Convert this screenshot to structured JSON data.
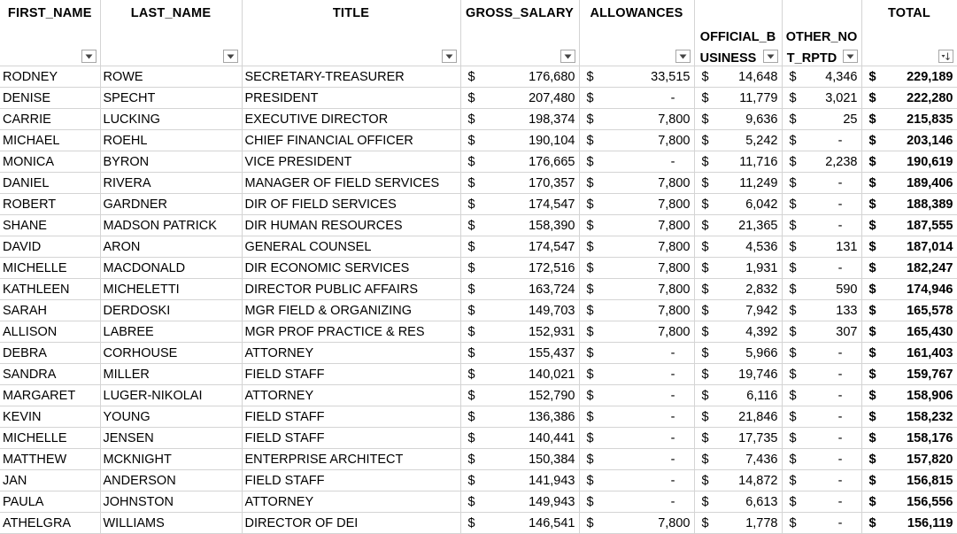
{
  "headers": {
    "first_name": "FIRST_NAME",
    "last_name": "LAST_NAME",
    "title": "TITLE",
    "gross_salary": "GROSS_SALARY",
    "allowances": "ALLOWANCES",
    "official_business_line1": "OFFICIAL_B",
    "official_business_line2": "USINESS",
    "other_not_rptd_line1": "OTHER_NO",
    "other_not_rptd_line2": "T_RPTD",
    "total": "TOTAL"
  },
  "currency_symbol": "$",
  "rows": [
    {
      "first": "RODNEY",
      "last": "ROWE",
      "title": "SECRETARY-TREASURER",
      "gross": "176,680",
      "allow": "33,515",
      "official": "14,648",
      "other": "4,346",
      "total": "229,189"
    },
    {
      "first": "DENISE",
      "last": "SPECHT",
      "title": "PRESIDENT",
      "gross": "207,480",
      "allow": "-",
      "official": "11,779",
      "other": "3,021",
      "total": "222,280"
    },
    {
      "first": "CARRIE",
      "last": "LUCKING",
      "title": "EXECUTIVE DIRECTOR",
      "gross": "198,374",
      "allow": "7,800",
      "official": "9,636",
      "other": "25",
      "total": "215,835"
    },
    {
      "first": "MICHAEL",
      "last": "ROEHL",
      "title": "CHIEF FINANCIAL OFFICER",
      "gross": "190,104",
      "allow": "7,800",
      "official": "5,242",
      "other": "-",
      "total": "203,146"
    },
    {
      "first": "MONICA",
      "last": "BYRON",
      "title": "VICE PRESIDENT",
      "gross": "176,665",
      "allow": "-",
      "official": "11,716",
      "other": "2,238",
      "total": "190,619"
    },
    {
      "first": "DANIEL",
      "last": "RIVERA",
      "title": "MANAGER OF FIELD SERVICES",
      "gross": "170,357",
      "allow": "7,800",
      "official": "11,249",
      "other": "-",
      "total": "189,406"
    },
    {
      "first": "ROBERT",
      "last": "GARDNER",
      "title": "DIR OF FIELD SERVICES",
      "gross": "174,547",
      "allow": "7,800",
      "official": "6,042",
      "other": "-",
      "total": "188,389"
    },
    {
      "first": "SHANE",
      "last": "MADSON PATRICK",
      "title": "DIR HUMAN RESOURCES",
      "gross": "158,390",
      "allow": "7,800",
      "official": "21,365",
      "other": "-",
      "total": "187,555"
    },
    {
      "first": "DAVID",
      "last": "ARON",
      "title": "GENERAL COUNSEL",
      "gross": "174,547",
      "allow": "7,800",
      "official": "4,536",
      "other": "131",
      "total": "187,014"
    },
    {
      "first": "MICHELLE",
      "last": "MACDONALD",
      "title": "DIR ECONOMIC SERVICES",
      "gross": "172,516",
      "allow": "7,800",
      "official": "1,931",
      "other": "-",
      "total": "182,247"
    },
    {
      "first": "KATHLEEN",
      "last": "MICHELETTI",
      "title": "DIRECTOR PUBLIC AFFAIRS",
      "gross": "163,724",
      "allow": "7,800",
      "official": "2,832",
      "other": "590",
      "total": "174,946"
    },
    {
      "first": "SARAH",
      "last": "DERDOSKI",
      "title": "MGR FIELD & ORGANIZING",
      "gross": "149,703",
      "allow": "7,800",
      "official": "7,942",
      "other": "133",
      "total": "165,578"
    },
    {
      "first": "ALLISON",
      "last": "LABREE",
      "title": "MGR PROF PRACTICE & RES",
      "gross": "152,931",
      "allow": "7,800",
      "official": "4,392",
      "other": "307",
      "total": "165,430"
    },
    {
      "first": "DEBRA",
      "last": "CORHOUSE",
      "title": "ATTORNEY",
      "gross": "155,437",
      "allow": "-",
      "official": "5,966",
      "other": "-",
      "total": "161,403"
    },
    {
      "first": "SANDRA",
      "last": "MILLER",
      "title": "FIELD STAFF",
      "gross": "140,021",
      "allow": "-",
      "official": "19,746",
      "other": "-",
      "total": "159,767"
    },
    {
      "first": "MARGARET",
      "last": "LUGER-NIKOLAI",
      "title": "ATTORNEY",
      "gross": "152,790",
      "allow": "-",
      "official": "6,116",
      "other": "-",
      "total": "158,906"
    },
    {
      "first": "KEVIN",
      "last": "YOUNG",
      "title": "FIELD STAFF",
      "gross": "136,386",
      "allow": "-",
      "official": "21,846",
      "other": "-",
      "total": "158,232"
    },
    {
      "first": "MICHELLE",
      "last": "JENSEN",
      "title": "FIELD STAFF",
      "gross": "140,441",
      "allow": "-",
      "official": "17,735",
      "other": "-",
      "total": "158,176"
    },
    {
      "first": "MATTHEW",
      "last": "MCKNIGHT",
      "title": "ENTERPRISE ARCHITECT",
      "gross": "150,384",
      "allow": "-",
      "official": "7,436",
      "other": "-",
      "total": "157,820"
    },
    {
      "first": "JAN",
      "last": "ANDERSON",
      "title": "FIELD STAFF",
      "gross": "141,943",
      "allow": "-",
      "official": "14,872",
      "other": "-",
      "total": "156,815"
    },
    {
      "first": "PAULA",
      "last": "JOHNSTON",
      "title": "ATTORNEY",
      "gross": "149,943",
      "allow": "-",
      "official": "6,613",
      "other": "-",
      "total": "156,556"
    },
    {
      "first": "ATHELGRA",
      "last": "WILLIAMS",
      "title": "DIRECTOR OF DEI",
      "gross": "146,541",
      "allow": "7,800",
      "official": "1,778",
      "other": "-",
      "total": "156,119"
    }
  ],
  "filters": {
    "first_name": "dropdown-arrow",
    "last_name": "dropdown-arrow",
    "title": "dropdown-arrow",
    "gross_salary": "dropdown-arrow",
    "allowances": "dropdown-arrow",
    "official_business": "dropdown-arrow",
    "other_not_rptd": "dropdown-arrow",
    "total": "sort-descending-arrow"
  },
  "colors": {
    "grid": "#d4d4d4",
    "filter_border": "#a6a6a6"
  }
}
